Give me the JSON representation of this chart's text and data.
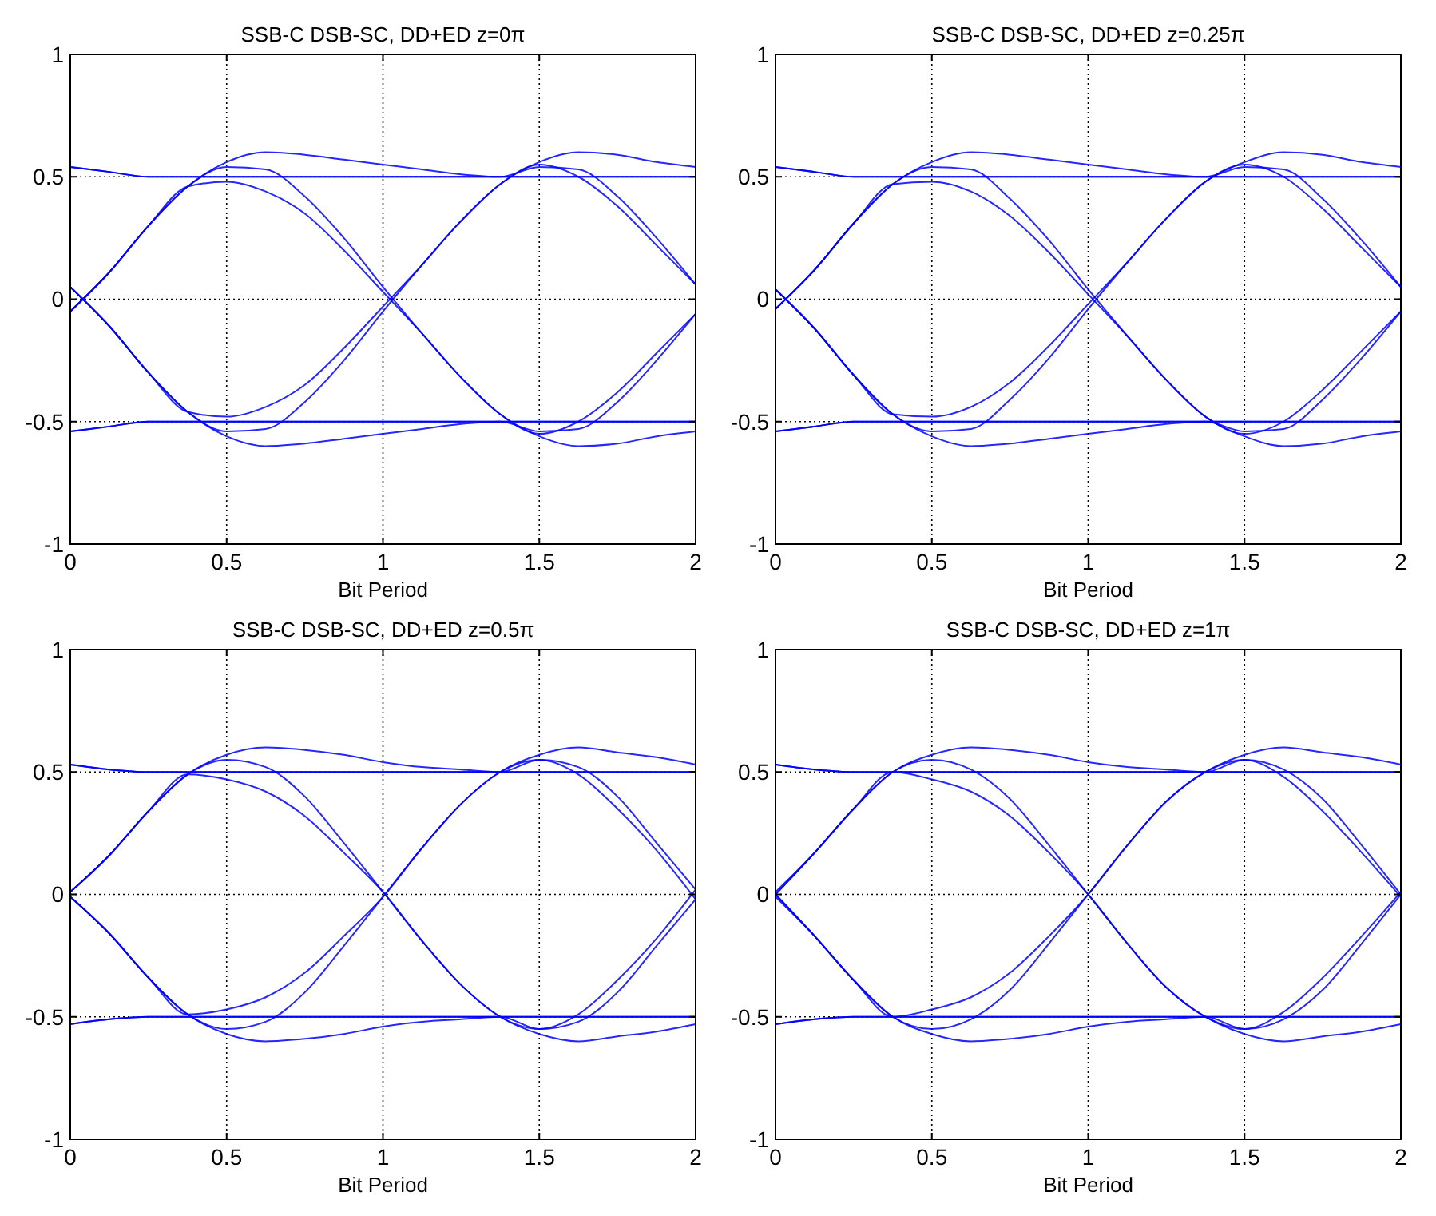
{
  "chart_data": [
    {
      "type": "line",
      "title": "SSB-C DSB-SC, DD+ED z=0π",
      "xlabel": "Bit Period",
      "xlim": [
        0,
        2
      ],
      "xticks": [
        0,
        0.5,
        1,
        1.5,
        2
      ],
      "ylim": [
        -1,
        1
      ],
      "yticks": [
        -1,
        -0.5,
        0,
        0.5,
        1
      ],
      "grid": true,
      "x": [
        0,
        0.125,
        0.25,
        0.375,
        0.5,
        0.625,
        0.75,
        0.875,
        1,
        1.125,
        1.25,
        1.375,
        1.5,
        1.625,
        1.75,
        1.875,
        2
      ],
      "series": [
        {
          "color": "#0000ff",
          "values": [
            0.54,
            0.52,
            0.5,
            0.5,
            0.5,
            0.5,
            0.5,
            0.5,
            0.5,
            0.5,
            0.5,
            0.5,
            0.5,
            0.5,
            0.5,
            0.5,
            0.5
          ]
        },
        {
          "color": "#0000ff",
          "values": [
            -0.54,
            -0.52,
            -0.5,
            -0.5,
            -0.5,
            -0.5,
            -0.5,
            -0.5,
            -0.5,
            -0.5,
            -0.5,
            -0.5,
            -0.5,
            -0.5,
            -0.5,
            -0.5,
            -0.5
          ]
        },
        {
          "color": "#0000ff",
          "values": [
            -0.05,
            0.11,
            0.3,
            0.46,
            0.56,
            0.6,
            0.59,
            0.57,
            0.55,
            0.53,
            0.51,
            0.5,
            0.5,
            0.5,
            0.5,
            0.5,
            0.5
          ]
        },
        {
          "color": "#0000ff",
          "values": [
            0.05,
            -0.11,
            -0.3,
            -0.46,
            -0.56,
            -0.6,
            -0.59,
            -0.57,
            -0.55,
            -0.53,
            -0.51,
            -0.5,
            -0.5,
            -0.5,
            -0.5,
            -0.5,
            -0.5
          ]
        },
        {
          "color": "#0000ff",
          "values": [
            -0.05,
            0.11,
            0.3,
            0.46,
            0.54,
            0.53,
            0.42,
            0.25,
            0.05,
            -0.14,
            -0.32,
            -0.47,
            -0.55,
            -0.5,
            -0.38,
            -0.22,
            -0.06
          ]
        },
        {
          "color": "#0000ff",
          "values": [
            -0.05,
            0.11,
            0.3,
            0.46,
            0.48,
            0.44,
            0.35,
            0.2,
            0.03,
            -0.14,
            -0.32,
            -0.47,
            -0.56,
            -0.6,
            -0.59,
            -0.56,
            -0.54
          ]
        },
        {
          "color": "#0000ff",
          "values": [
            0.05,
            -0.11,
            -0.3,
            -0.46,
            -0.54,
            -0.53,
            -0.42,
            -0.25,
            -0.05,
            0.14,
            0.32,
            0.47,
            0.55,
            0.5,
            0.38,
            0.22,
            0.06
          ]
        },
        {
          "color": "#0000ff",
          "values": [
            0.05,
            -0.11,
            -0.3,
            -0.46,
            -0.48,
            -0.44,
            -0.35,
            -0.2,
            -0.03,
            0.14,
            0.32,
            0.47,
            0.56,
            0.6,
            0.59,
            0.56,
            0.54
          ]
        },
        {
          "color": "#0000ff",
          "values": [
            0.54,
            0.52,
            0.5,
            0.5,
            0.5,
            0.5,
            0.5,
            0.5,
            0.5,
            0.5,
            0.5,
            0.5,
            0.54,
            0.53,
            0.42,
            0.25,
            0.06
          ]
        },
        {
          "color": "#0000ff",
          "values": [
            -0.54,
            -0.52,
            -0.5,
            -0.5,
            -0.5,
            -0.5,
            -0.5,
            -0.5,
            -0.5,
            -0.5,
            -0.5,
            -0.5,
            -0.54,
            -0.53,
            -0.42,
            -0.25,
            -0.06
          ]
        }
      ]
    },
    {
      "type": "line",
      "title": "SSB-C DSB-SC, DD+ED z=0.25π",
      "xlabel": "Bit Period",
      "xlim": [
        0,
        2
      ],
      "xticks": [
        0,
        0.5,
        1,
        1.5,
        2
      ],
      "ylim": [
        -1,
        1
      ],
      "yticks": [
        -1,
        -0.5,
        0,
        0.5,
        1
      ],
      "grid": true,
      "x": [
        0,
        0.125,
        0.25,
        0.375,
        0.5,
        0.625,
        0.75,
        0.875,
        1,
        1.125,
        1.25,
        1.375,
        1.5,
        1.625,
        1.75,
        1.875,
        2
      ],
      "series": [
        {
          "color": "#0000ff",
          "values": [
            0.54,
            0.52,
            0.5,
            0.5,
            0.5,
            0.5,
            0.5,
            0.5,
            0.5,
            0.5,
            0.5,
            0.5,
            0.5,
            0.5,
            0.5,
            0.5,
            0.5
          ]
        },
        {
          "color": "#0000ff",
          "values": [
            -0.54,
            -0.52,
            -0.5,
            -0.5,
            -0.5,
            -0.5,
            -0.5,
            -0.5,
            -0.5,
            -0.5,
            -0.5,
            -0.5,
            -0.5,
            -0.5,
            -0.5,
            -0.5,
            -0.5
          ]
        },
        {
          "color": "#0000ff",
          "values": [
            -0.04,
            0.12,
            0.31,
            0.47,
            0.56,
            0.6,
            0.59,
            0.57,
            0.55,
            0.53,
            0.51,
            0.5,
            0.5,
            0.5,
            0.5,
            0.5,
            0.5
          ]
        },
        {
          "color": "#0000ff",
          "values": [
            0.04,
            -0.12,
            -0.31,
            -0.47,
            -0.56,
            -0.6,
            -0.59,
            -0.57,
            -0.55,
            -0.53,
            -0.51,
            -0.5,
            -0.5,
            -0.5,
            -0.5,
            -0.5,
            -0.5
          ]
        },
        {
          "color": "#0000ff",
          "values": [
            -0.04,
            0.12,
            0.31,
            0.47,
            0.54,
            0.53,
            0.41,
            0.24,
            0.04,
            -0.15,
            -0.33,
            -0.48,
            -0.55,
            -0.5,
            -0.37,
            -0.21,
            -0.05
          ]
        },
        {
          "color": "#0000ff",
          "values": [
            -0.04,
            0.12,
            0.31,
            0.47,
            0.48,
            0.44,
            0.34,
            0.19,
            0.02,
            -0.15,
            -0.33,
            -0.48,
            -0.56,
            -0.6,
            -0.59,
            -0.56,
            -0.54
          ]
        },
        {
          "color": "#0000ff",
          "values": [
            0.04,
            -0.12,
            -0.31,
            -0.47,
            -0.54,
            -0.53,
            -0.41,
            -0.24,
            -0.04,
            0.15,
            0.33,
            0.48,
            0.55,
            0.5,
            0.37,
            0.21,
            0.05
          ]
        },
        {
          "color": "#0000ff",
          "values": [
            0.04,
            -0.12,
            -0.31,
            -0.47,
            -0.48,
            -0.44,
            -0.34,
            -0.19,
            -0.02,
            0.15,
            0.33,
            0.48,
            0.56,
            0.6,
            0.59,
            0.56,
            0.54
          ]
        },
        {
          "color": "#0000ff",
          "values": [
            0.54,
            0.52,
            0.5,
            0.5,
            0.5,
            0.5,
            0.5,
            0.5,
            0.5,
            0.5,
            0.5,
            0.5,
            0.54,
            0.53,
            0.41,
            0.24,
            0.05
          ]
        },
        {
          "color": "#0000ff",
          "values": [
            -0.54,
            -0.52,
            -0.5,
            -0.5,
            -0.5,
            -0.5,
            -0.5,
            -0.5,
            -0.5,
            -0.5,
            -0.5,
            -0.5,
            -0.54,
            -0.53,
            -0.41,
            -0.24,
            -0.05
          ]
        }
      ]
    },
    {
      "type": "line",
      "title": "SSB-C DSB-SC, DD+ED z=0.5π",
      "xlabel": "Bit Period",
      "xlim": [
        0,
        2
      ],
      "xticks": [
        0,
        0.5,
        1,
        1.5,
        2
      ],
      "ylim": [
        -1,
        1
      ],
      "yticks": [
        -1,
        -0.5,
        0,
        0.5,
        1
      ],
      "grid": true,
      "x": [
        0,
        0.125,
        0.25,
        0.375,
        0.5,
        0.625,
        0.75,
        0.875,
        1,
        1.125,
        1.25,
        1.375,
        1.5,
        1.625,
        1.75,
        1.875,
        2
      ],
      "series": [
        {
          "color": "#0000ff",
          "values": [
            0.53,
            0.51,
            0.5,
            0.5,
            0.5,
            0.5,
            0.5,
            0.5,
            0.5,
            0.5,
            0.5,
            0.5,
            0.5,
            0.5,
            0.5,
            0.5,
            0.5
          ]
        },
        {
          "color": "#0000ff",
          "values": [
            -0.53,
            -0.51,
            -0.5,
            -0.5,
            -0.5,
            -0.5,
            -0.5,
            -0.5,
            -0.5,
            -0.5,
            -0.5,
            -0.5,
            -0.5,
            -0.5,
            -0.5,
            -0.5,
            -0.5
          ]
        },
        {
          "color": "#0000ff",
          "values": [
            0.01,
            0.16,
            0.34,
            0.49,
            0.57,
            0.6,
            0.59,
            0.57,
            0.54,
            0.52,
            0.51,
            0.5,
            0.5,
            0.5,
            0.5,
            0.5,
            0.5
          ]
        },
        {
          "color": "#0000ff",
          "values": [
            -0.01,
            -0.16,
            -0.34,
            -0.49,
            -0.57,
            -0.6,
            -0.59,
            -0.57,
            -0.54,
            -0.52,
            -0.51,
            -0.5,
            -0.5,
            -0.5,
            -0.5,
            -0.5,
            -0.5
          ]
        },
        {
          "color": "#0000ff",
          "values": [
            0.01,
            0.16,
            0.34,
            0.49,
            0.55,
            0.52,
            0.4,
            0.21,
            0.01,
            -0.19,
            -0.37,
            -0.5,
            -0.55,
            -0.49,
            -0.35,
            -0.18,
            0.02
          ]
        },
        {
          "color": "#0000ff",
          "values": [
            0.01,
            0.16,
            0.34,
            0.49,
            0.47,
            0.42,
            0.32,
            0.17,
            0.01,
            -0.19,
            -0.37,
            -0.5,
            -0.57,
            -0.6,
            -0.58,
            -0.56,
            -0.53
          ]
        },
        {
          "color": "#0000ff",
          "values": [
            -0.01,
            -0.16,
            -0.34,
            -0.49,
            -0.55,
            -0.52,
            -0.4,
            -0.21,
            -0.01,
            0.19,
            0.37,
            0.5,
            0.55,
            0.49,
            0.35,
            0.18,
            -0.02
          ]
        },
        {
          "color": "#0000ff",
          "values": [
            -0.01,
            -0.16,
            -0.34,
            -0.49,
            -0.47,
            -0.42,
            -0.32,
            -0.17,
            -0.01,
            0.19,
            0.37,
            0.5,
            0.57,
            0.6,
            0.58,
            0.56,
            0.53
          ]
        },
        {
          "color": "#0000ff",
          "values": [
            0.53,
            0.51,
            0.5,
            0.5,
            0.5,
            0.5,
            0.5,
            0.5,
            0.5,
            0.5,
            0.5,
            0.5,
            0.55,
            0.52,
            0.4,
            0.21,
            0.02
          ]
        },
        {
          "color": "#0000ff",
          "values": [
            -0.53,
            -0.51,
            -0.5,
            -0.5,
            -0.5,
            -0.5,
            -0.5,
            -0.5,
            -0.5,
            -0.5,
            -0.5,
            -0.5,
            -0.55,
            -0.52,
            -0.4,
            -0.21,
            -0.02
          ]
        }
      ]
    },
    {
      "type": "line",
      "title": "SSB-C DSB-SC, DD+ED z=1π",
      "xlabel": "Bit Period",
      "xlim": [
        0,
        2
      ],
      "xticks": [
        0,
        0.5,
        1,
        1.5,
        2
      ],
      "ylim": [
        -1,
        1
      ],
      "yticks": [
        -1,
        -0.5,
        0,
        0.5,
        1
      ],
      "grid": true,
      "x": [
        0,
        0.125,
        0.25,
        0.375,
        0.5,
        0.625,
        0.75,
        0.875,
        1,
        1.125,
        1.25,
        1.375,
        1.5,
        1.625,
        1.75,
        1.875,
        2
      ],
      "series": [
        {
          "color": "#0000ff",
          "values": [
            0.53,
            0.51,
            0.5,
            0.5,
            0.5,
            0.5,
            0.5,
            0.5,
            0.5,
            0.5,
            0.5,
            0.5,
            0.5,
            0.5,
            0.5,
            0.5,
            0.5
          ]
        },
        {
          "color": "#0000ff",
          "values": [
            -0.53,
            -0.51,
            -0.5,
            -0.5,
            -0.5,
            -0.5,
            -0.5,
            -0.5,
            -0.5,
            -0.5,
            -0.5,
            -0.5,
            -0.5,
            -0.5,
            -0.5,
            -0.5,
            -0.5
          ]
        },
        {
          "color": "#0000ff",
          "values": [
            0,
            0.17,
            0.35,
            0.5,
            0.57,
            0.6,
            0.59,
            0.57,
            0.54,
            0.52,
            0.51,
            0.5,
            0.5,
            0.5,
            0.5,
            0.5,
            0.5
          ]
        },
        {
          "color": "#0000ff",
          "values": [
            0,
            -0.17,
            -0.35,
            -0.5,
            -0.57,
            -0.6,
            -0.59,
            -0.57,
            -0.54,
            -0.52,
            -0.51,
            -0.5,
            -0.5,
            -0.5,
            -0.5,
            -0.5,
            -0.5
          ]
        },
        {
          "color": "#0000ff",
          "values": [
            0.01,
            0.17,
            0.35,
            0.5,
            0.55,
            0.51,
            0.39,
            0.2,
            0,
            -0.2,
            -0.38,
            -0.5,
            -0.55,
            -0.48,
            -0.34,
            -0.17,
            0.01
          ]
        },
        {
          "color": "#0000ff",
          "values": [
            0,
            0.17,
            0.35,
            0.5,
            0.47,
            0.42,
            0.32,
            0.17,
            0,
            -0.2,
            -0.38,
            -0.5,
            -0.57,
            -0.6,
            -0.58,
            -0.56,
            -0.53
          ]
        },
        {
          "color": "#0000ff",
          "values": [
            -0.01,
            -0.17,
            -0.35,
            -0.5,
            -0.55,
            -0.51,
            -0.39,
            -0.2,
            0,
            0.2,
            0.38,
            0.5,
            0.55,
            0.48,
            0.34,
            0.17,
            -0.01
          ]
        },
        {
          "color": "#0000ff",
          "values": [
            0,
            -0.17,
            -0.35,
            -0.5,
            -0.47,
            -0.42,
            -0.32,
            -0.17,
            0,
            0.2,
            0.38,
            0.5,
            0.57,
            0.6,
            0.58,
            0.56,
            0.53
          ]
        },
        {
          "color": "#0000ff",
          "values": [
            0.53,
            0.51,
            0.5,
            0.5,
            0.5,
            0.5,
            0.5,
            0.5,
            0.5,
            0.5,
            0.5,
            0.5,
            0.55,
            0.51,
            0.39,
            0.2,
            0
          ]
        },
        {
          "color": "#0000ff",
          "values": [
            -0.53,
            -0.51,
            -0.5,
            -0.5,
            -0.5,
            -0.5,
            -0.5,
            -0.5,
            -0.5,
            -0.5,
            -0.5,
            -0.5,
            -0.55,
            -0.51,
            -0.39,
            -0.2,
            0
          ]
        }
      ]
    }
  ]
}
